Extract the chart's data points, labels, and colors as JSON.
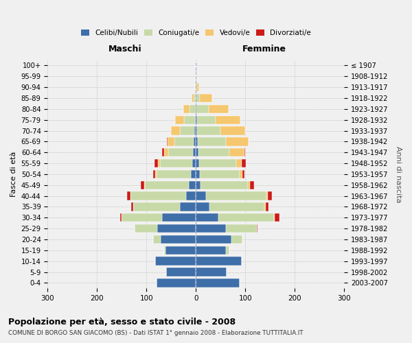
{
  "age_groups": [
    "0-4",
    "5-9",
    "10-14",
    "15-19",
    "20-24",
    "25-29",
    "30-34",
    "35-39",
    "40-44",
    "45-49",
    "50-54",
    "55-59",
    "60-64",
    "65-69",
    "70-74",
    "75-79",
    "80-84",
    "85-89",
    "90-94",
    "95-99",
    "100+"
  ],
  "birth_years": [
    "2003-2007",
    "1998-2002",
    "1993-1997",
    "1988-1992",
    "1983-1987",
    "1978-1982",
    "1973-1977",
    "1968-1972",
    "1963-1967",
    "1958-1962",
    "1953-1957",
    "1948-1952",
    "1943-1947",
    "1938-1942",
    "1933-1937",
    "1928-1932",
    "1923-1927",
    "1918-1922",
    "1913-1917",
    "1908-1912",
    "≤ 1907"
  ],
  "colors": {
    "celibi": "#3f6fa8",
    "coniugati": "#c8d9a8",
    "vedovi": "#f5c76e",
    "divorziati": "#cc1a1a"
  },
  "male_celibi": [
    80,
    60,
    82,
    62,
    72,
    78,
    68,
    32,
    20,
    14,
    10,
    8,
    6,
    4,
    3,
    2,
    1,
    0,
    0,
    0,
    0
  ],
  "male_coniugati": [
    0,
    0,
    1,
    3,
    14,
    46,
    82,
    95,
    112,
    90,
    70,
    65,
    50,
    40,
    30,
    22,
    12,
    4,
    1,
    0,
    0
  ],
  "male_vedovi": [
    0,
    0,
    0,
    0,
    0,
    0,
    0,
    0,
    1,
    1,
    2,
    4,
    8,
    14,
    17,
    18,
    12,
    5,
    1,
    0,
    0
  ],
  "male_divorziati": [
    0,
    0,
    0,
    0,
    0,
    0,
    4,
    4,
    7,
    7,
    5,
    7,
    4,
    1,
    0,
    0,
    0,
    0,
    0,
    0,
    0
  ],
  "female_nubili": [
    88,
    62,
    92,
    60,
    72,
    60,
    46,
    27,
    20,
    9,
    8,
    6,
    5,
    3,
    2,
    2,
    1,
    0,
    0,
    0,
    0
  ],
  "female_coniugate": [
    0,
    0,
    1,
    8,
    22,
    63,
    112,
    112,
    122,
    96,
    80,
    75,
    63,
    58,
    48,
    38,
    25,
    8,
    2,
    0,
    0
  ],
  "female_vedove": [
    0,
    0,
    0,
    0,
    0,
    0,
    1,
    2,
    3,
    4,
    6,
    12,
    30,
    45,
    50,
    50,
    40,
    25,
    5,
    1,
    0
  ],
  "female_divorziate": [
    0,
    0,
    0,
    0,
    0,
    1,
    10,
    6,
    9,
    8,
    4,
    8,
    2,
    1,
    0,
    0,
    0,
    0,
    0,
    0,
    0
  ],
  "title": "Popolazione per età, sesso e stato civile - 2008",
  "subtitle": "COMUNE DI BORGO SAN GIACOMO (BS) - Dati ISTAT 1° gennaio 2008 - Elaborazione TUTTITALIA.IT",
  "xlabel_left": "Maschi",
  "xlabel_right": "Femmine",
  "ylabel_left": "Fasce di età",
  "ylabel_right": "Anni di nascita",
  "xlim": 300,
  "bg_color": "#f0f0f0",
  "grid_color": "#c8c8c8"
}
